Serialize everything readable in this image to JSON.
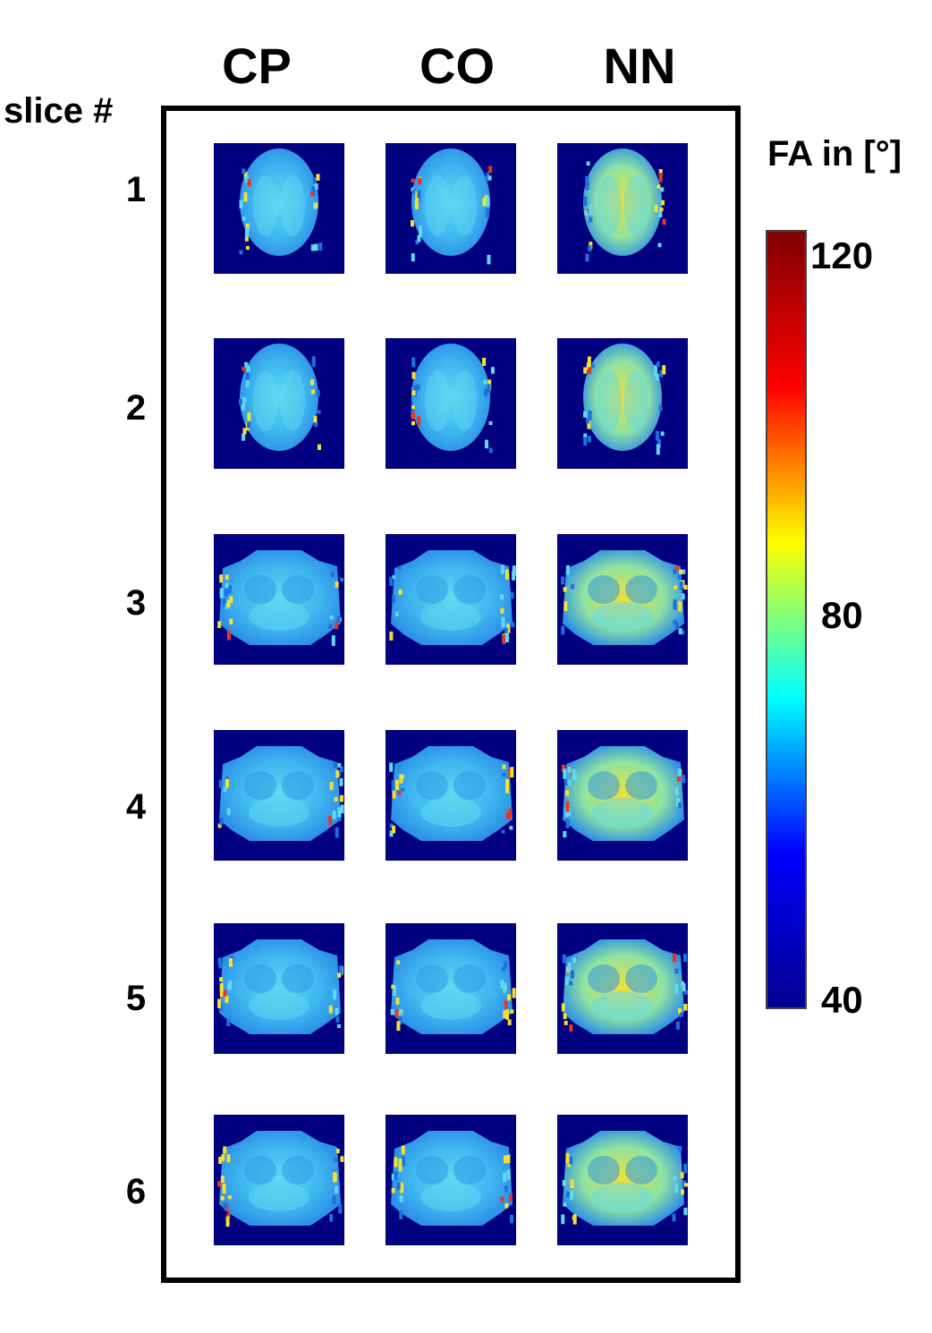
{
  "header": {
    "slice_label": "slice #",
    "columns": [
      "CP",
      "CO",
      "NN"
    ]
  },
  "rows": [
    "1",
    "2",
    "3",
    "4",
    "5",
    "6"
  ],
  "colorbar": {
    "title": "FA in [°]",
    "ticks": [
      "120",
      "80",
      "40"
    ],
    "range": [
      40,
      120
    ],
    "colormap": [
      "#00008f",
      "#0000ff",
      "#00ffff",
      "#ffff00",
      "#ff0000",
      "#800000"
    ]
  },
  "colors": {
    "background": "#000080",
    "tissue_base": "#3fb6f0",
    "tissue_light": "#5fd9ef",
    "tissue_green": "#8fe3a0",
    "hotspot_yellow": "#f2e033",
    "hotspot_red": "#e8371e"
  }
}
